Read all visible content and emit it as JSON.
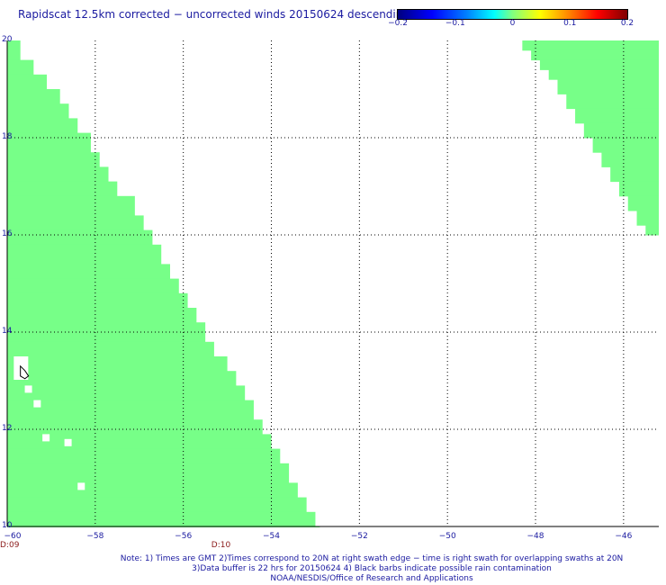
{
  "title": "Rapidscat 12.5km corrected − uncorrected winds 20150624 descending",
  "colorbar": {
    "ticks": [
      {
        "value": -0.2,
        "label": "−0.2"
      },
      {
        "value": -0.1,
        "label": "−0.1"
      },
      {
        "value": 0,
        "label": "0"
      },
      {
        "value": 0.1,
        "label": "0.1"
      },
      {
        "value": 0.2,
        "label": "0.2"
      }
    ],
    "range": [
      -0.2,
      0.2
    ]
  },
  "time_labels": [
    {
      "lon": -60,
      "label": "D:09"
    },
    {
      "lon": -55.2,
      "label": "D:10"
    }
  ],
  "notes": [
    "Note: 1) Times are GMT 2)Times correspond to 20N at right swath edge − time is right swath for overlapping swaths at 20N",
    "3)Data buffer is 22 hrs for 20150624 4) Black barbs indicate possible rain contamination",
    "NOAA/NESDIS/Office of Research and Applications"
  ],
  "colors": {
    "swath_fill": "#77ff88",
    "text": "#1a1aa0",
    "time_label": "#8b1a1a"
  },
  "chart_data": {
    "type": "heatmap",
    "title": "Rapidscat 12.5km corrected − uncorrected winds 20150624 descending",
    "xlim": [
      -60,
      -45.2
    ],
    "ylim": [
      10,
      20
    ],
    "x_ticks": [
      -60,
      -58,
      -56,
      -54,
      -52,
      -50,
      -48,
      -46
    ],
    "x_tick_labels": [
      "−60",
      "−58",
      "−56",
      "−54",
      "−52",
      "−50",
      "−48",
      "−46"
    ],
    "y_ticks": [
      10,
      12,
      14,
      16,
      18,
      20
    ],
    "y_tick_labels": [
      "10",
      "12",
      "14",
      "16",
      "18",
      "20"
    ],
    "grid": true,
    "value_description": "Difference values near 0 across swaths",
    "swaths": [
      {
        "name": "",
        "value": 0,
        "left_lon": -60,
        "bottom_lat": 10,
        "right_edge": [
          [
            20,
            -59.7
          ],
          [
            19.6,
            -59.4
          ],
          [
            19.3,
            -59.1
          ],
          [
            19.0,
            -58.8
          ],
          [
            18.7,
            -58.6
          ],
          [
            18.4,
            -58.4
          ],
          [
            18.1,
            -58.1
          ],
          [
            17.7,
            -57.9
          ],
          [
            17.4,
            -57.7
          ],
          [
            17.1,
            -57.5
          ],
          [
            16.8,
            -57.1
          ],
          [
            16.4,
            -56.9
          ],
          [
            16.1,
            -56.7
          ],
          [
            15.8,
            -56.5
          ],
          [
            15.4,
            -56.3
          ],
          [
            15.1,
            -56.1
          ],
          [
            14.8,
            -55.9
          ],
          [
            14.5,
            -55.7
          ],
          [
            14.2,
            -55.5
          ],
          [
            13.8,
            -55.3
          ],
          [
            13.5,
            -55.0
          ],
          [
            13.2,
            -54.8
          ],
          [
            12.9,
            -54.6
          ],
          [
            12.6,
            -54.4
          ],
          [
            12.2,
            -54.2
          ],
          [
            11.9,
            -54.0
          ],
          [
            11.6,
            -53.8
          ],
          [
            11.3,
            -53.6
          ],
          [
            10.9,
            -53.4
          ],
          [
            10.6,
            -53.2
          ],
          [
            10.3,
            -53.0
          ],
          [
            10.0,
            -52.9
          ]
        ],
        "gaps": [
          [
            -59.6,
            12.9
          ],
          [
            -59.4,
            12.6
          ],
          [
            -59.2,
            11.9
          ],
          [
            -58.7,
            11.8
          ],
          [
            -58.4,
            10.9
          ]
        ]
      },
      {
        "name": "",
        "value": 0,
        "top_lat": 20,
        "right_lon": -45.2,
        "left_edge": [
          [
            20,
            -48.3
          ],
          [
            19.8,
            -48.1
          ],
          [
            19.6,
            -47.9
          ],
          [
            19.4,
            -47.7
          ],
          [
            19.2,
            -47.5
          ],
          [
            18.9,
            -47.3
          ],
          [
            18.6,
            -47.1
          ],
          [
            18.3,
            -46.9
          ],
          [
            18.0,
            -46.7
          ],
          [
            17.7,
            -46.5
          ],
          [
            17.4,
            -46.3
          ],
          [
            17.1,
            -46.1
          ],
          [
            16.8,
            -45.9
          ],
          [
            16.5,
            -45.7
          ],
          [
            16.2,
            -45.5
          ],
          [
            16.0,
            -45.2
          ]
        ]
      }
    ]
  }
}
